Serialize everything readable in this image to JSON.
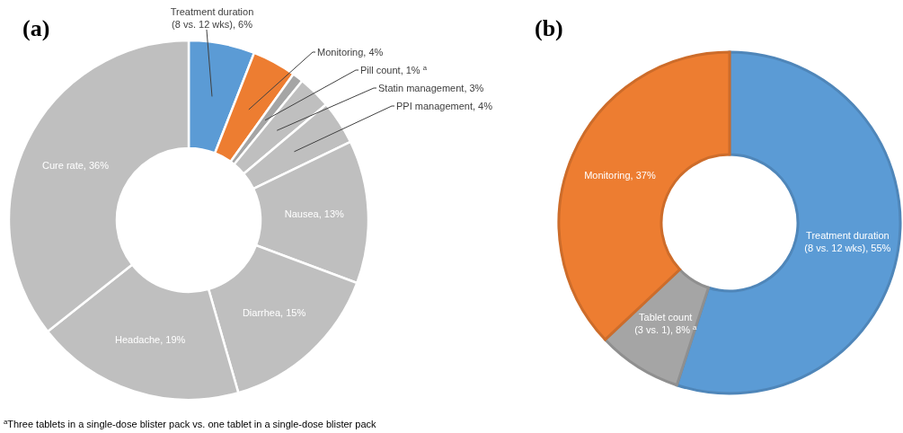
{
  "chart_data": [
    {
      "type": "donut",
      "title": "(a)",
      "categories": [
        "Treatment duration (8 vs. 12 wks)",
        "Monitoring",
        "Pill count",
        "Statin management",
        "PPI management",
        "Nausea",
        "Diarrhea",
        "Headache",
        "Cure rate"
      ],
      "values": [
        6,
        4,
        1,
        3,
        4,
        13,
        15,
        19,
        36
      ],
      "value_labels": [
        "6%",
        "4%",
        "1% $^{a}$",
        "3%",
        "4%",
        "13%",
        "15%",
        "19%",
        "36%"
      ],
      "colors": [
        "#5b9bd5",
        "#ed7d31",
        "#a5a5a5",
        "#bfbfbf",
        "#bfbfbf",
        "#bfbfbf",
        "#bfbfbf",
        "#bfbfbf",
        "#bfbfbf"
      ],
      "annotations": [
        "$^{a}$Three tablets in a single-dose blister pack vs. one tablet in a single-dose blister pack"
      ]
    },
    {
      "type": "donut",
      "title": "(b)",
      "categories": [
        "Treatment duration (8 vs. 12 wks)",
        "Tablet count (3 vs. 1)",
        "Monitoring"
      ],
      "values": [
        55,
        8,
        37
      ],
      "value_labels": [
        "55%",
        "8% $^{a}$",
        "37%"
      ],
      "colors": [
        "#5b9bd5",
        "#a5a5a5",
        "#ed7d31"
      ]
    }
  ]
}
